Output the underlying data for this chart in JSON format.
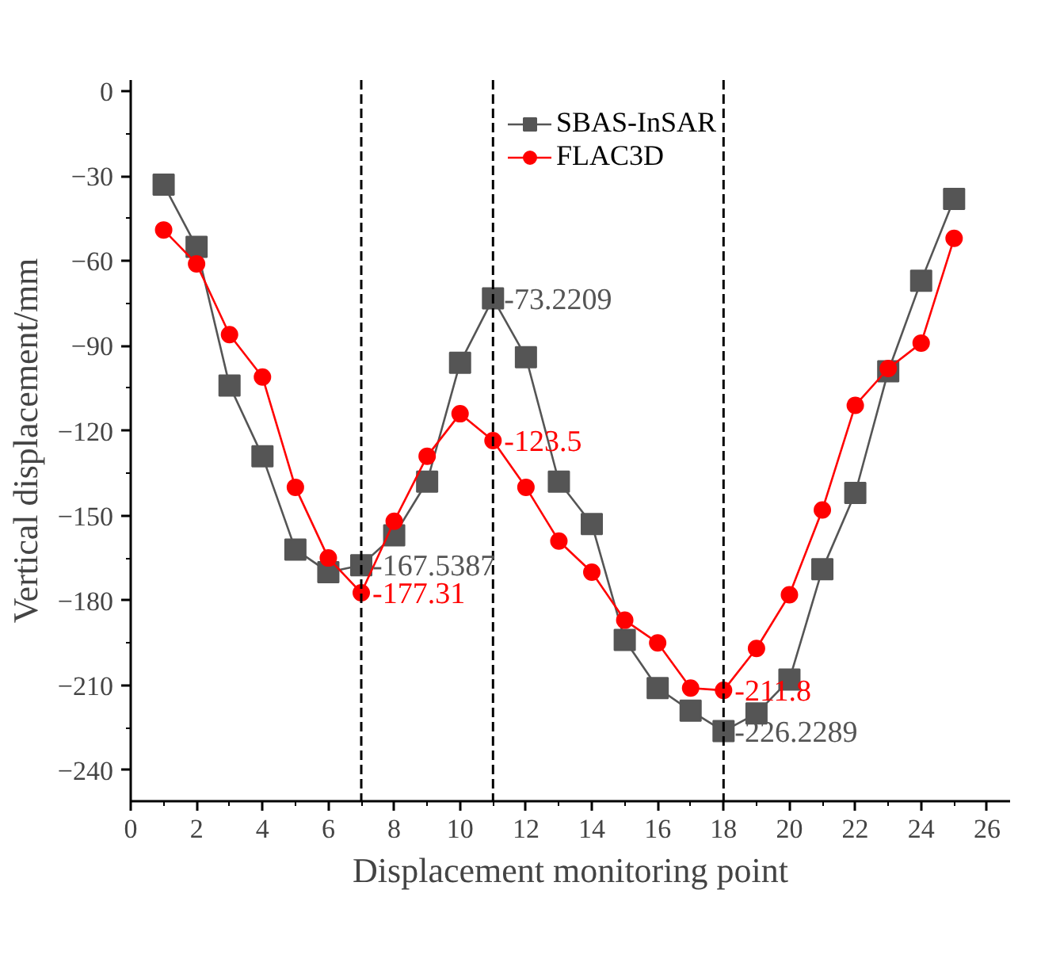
{
  "chart_data": {
    "type": "line",
    "xlabel": "Displacement monitoring point",
    "ylabel": "Vertical displacement/mm",
    "x": [
      1,
      2,
      3,
      4,
      5,
      6,
      7,
      8,
      9,
      10,
      11,
      12,
      13,
      14,
      15,
      16,
      17,
      18,
      19,
      20,
      21,
      22,
      23,
      24,
      25
    ],
    "series": [
      {
        "name": "SBAS-InSAR",
        "color": "#555555",
        "marker": "square",
        "values": [
          -33,
          -55,
          -104,
          -129,
          -162,
          -170,
          -167.5387,
          -157,
          -138,
          -96,
          -73.2209,
          -94,
          -138,
          -153,
          -194,
          -211,
          -219,
          -226.2289,
          -220,
          -208,
          -169,
          -142,
          -99,
          -67,
          -38
        ]
      },
      {
        "name": "FLAC3D",
        "color": "#ff0000",
        "marker": "circle",
        "values": [
          -49,
          -61,
          -86,
          -101,
          -140,
          -165,
          -177.31,
          -152,
          -129,
          -114,
          -123.5,
          -140,
          -159,
          -170,
          -187,
          -195,
          -211,
          -211.8,
          -197,
          -178,
          -148,
          -111,
          -98,
          -89,
          -52
        ]
      }
    ],
    "annotations": [
      {
        "text": "-167.5387",
        "x": 7,
        "y": -167.5387
      },
      {
        "text": "-177.31",
        "x": 7,
        "y": -177.31
      },
      {
        "text": "-73.2209",
        "x": 11,
        "y": -73.2209
      },
      {
        "text": "-123.5",
        "x": 11,
        "y": -123.5
      },
      {
        "text": "-226.2289",
        "x": 18,
        "y": -226.2289
      },
      {
        "text": "-211.8",
        "x": 18,
        "y": -211.8
      }
    ],
    "ref_lines": [
      {
        "axis": "x",
        "value": 7,
        "color": "#000000",
        "line_style": "dashed"
      },
      {
        "axis": "x",
        "value": 11,
        "color": "#000000",
        "line_style": "dashed"
      },
      {
        "axis": "x",
        "value": 18,
        "color": "#000000",
        "line_style": "dashed"
      }
    ],
    "xlim": [
      0,
      26.7
    ],
    "ylim": [
      -251,
      4
    ],
    "xticks": [
      0,
      2,
      4,
      6,
      8,
      10,
      12,
      14,
      16,
      18,
      20,
      22,
      24,
      26
    ],
    "yticks": [
      0,
      -30,
      -60,
      -90,
      -120,
      -150,
      -180,
      -210,
      -240
    ],
    "grid": false,
    "legend": "top",
    "line_style": "solid"
  }
}
